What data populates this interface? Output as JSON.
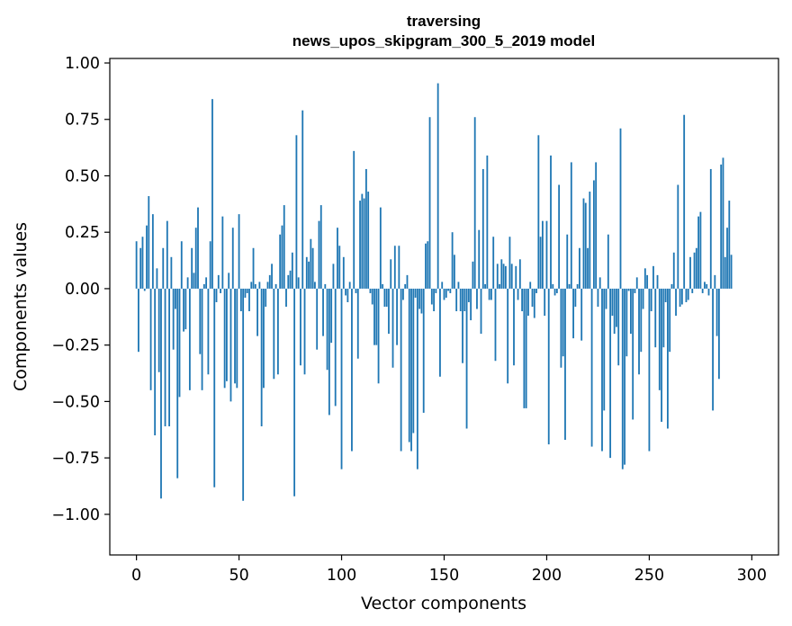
{
  "chart_data": {
    "type": "bar",
    "title": [
      "traversing",
      "news_upos_skipgram_300_5_2019 model"
    ],
    "xlabel": "Vector components",
    "ylabel": "Components values",
    "xlim": [
      -13,
      313
    ],
    "ylim": [
      -1.18,
      1.02
    ],
    "xticks": [
      0,
      50,
      100,
      150,
      200,
      250,
      300
    ],
    "xtick_labels": [
      "0",
      "50",
      "100",
      "150",
      "200",
      "250",
      "300"
    ],
    "yticks": [
      1.0,
      0.75,
      0.5,
      0.25,
      0.0,
      -0.25,
      -0.5,
      -0.75,
      -1.0
    ],
    "ytick_labels": [
      "1.00",
      "0.75",
      "0.50",
      "0.25",
      "0.00",
      "−0.25",
      "−0.50",
      "−0.75",
      "−1.00"
    ],
    "bar_color": "#1f77b4",
    "grid": false,
    "legend": "none",
    "x_start": 0,
    "values": [
      0.21,
      -0.28,
      0.18,
      0.23,
      -0.01,
      0.28,
      0.41,
      -0.45,
      0.33,
      -0.65,
      0.09,
      -0.37,
      -0.93,
      0.18,
      -0.61,
      0.3,
      -0.61,
      0.14,
      -0.27,
      -0.09,
      -0.84,
      -0.48,
      0.21,
      -0.19,
      -0.18,
      0.05,
      -0.45,
      0.18,
      0.07,
      0.27,
      0.36,
      -0.29,
      -0.45,
      0.02,
      0.05,
      -0.38,
      0.21,
      0.84,
      -0.88,
      -0.06,
      0.06,
      -0.02,
      0.32,
      -0.44,
      -0.41,
      0.07,
      -0.5,
      0.27,
      -0.42,
      -0.44,
      0.33,
      -0.1,
      -0.94,
      -0.04,
      -0.02,
      -0.1,
      0.03,
      0.18,
      0.02,
      -0.21,
      0.03,
      -0.61,
      -0.44,
      -0.08,
      0.03,
      0.06,
      0.11,
      -0.4,
      0.02,
      -0.38,
      0.24,
      0.28,
      0.37,
      -0.08,
      0.06,
      0.08,
      0.16,
      -0.92,
      0.68,
      0.05,
      -0.34,
      0.79,
      -0.38,
      0.14,
      0.12,
      0.22,
      0.18,
      0.03,
      -0.27,
      0.3,
      0.37,
      -0.21,
      0.02,
      -0.36,
      -0.56,
      -0.24,
      0.11,
      -0.52,
      0.27,
      0.19,
      -0.8,
      0.14,
      -0.03,
      -0.06,
      0.03,
      -0.72,
      0.61,
      -0.02,
      -0.31,
      0.39,
      0.42,
      0.4,
      0.53,
      0.43,
      -0.02,
      -0.07,
      -0.25,
      -0.25,
      -0.42,
      0.36,
      0.02,
      -0.08,
      -0.08,
      -0.2,
      0.13,
      -0.35,
      0.19,
      -0.25,
      0.19,
      -0.72,
      -0.05,
      0.02,
      0.06,
      -0.68,
      -0.72,
      -0.64,
      -0.04,
      -0.8,
      -0.09,
      -0.11,
      -0.55,
      0.2,
      0.21,
      0.76,
      -0.07,
      -0.1,
      -0.02,
      0.91,
      -0.39,
      0.03,
      -0.05,
      -0.04,
      -0.01,
      -0.02,
      0.25,
      0.15,
      -0.1,
      0.03,
      -0.1,
      -0.33,
      -0.1,
      -0.62,
      -0.06,
      -0.14,
      0.12,
      0.76,
      -0.09,
      0.26,
      -0.2,
      0.53,
      0.02,
      0.59,
      -0.05,
      -0.05,
      0.23,
      -0.32,
      0.11,
      0.02,
      0.13,
      0.11,
      0.1,
      -0.42,
      0.23,
      0.11,
      -0.34,
      0.1,
      -0.05,
      0.13,
      -0.1,
      -0.53,
      -0.53,
      -0.12,
      0.03,
      -0.08,
      -0.13,
      -0.02,
      0.68,
      0.23,
      0.3,
      -0.12,
      0.3,
      -0.69,
      0.59,
      0.02,
      -0.03,
      -0.02,
      0.46,
      -0.35,
      -0.3,
      -0.67,
      0.24,
      0.02,
      0.56,
      -0.22,
      -0.08,
      0.02,
      0.18,
      -0.23,
      0.4,
      0.38,
      0.18,
      0.43,
      -0.7,
      0.48,
      0.56,
      -0.08,
      0.05,
      -0.72,
      -0.54,
      -0.09,
      0.24,
      -0.75,
      -0.12,
      -0.2,
      -0.17,
      -0.34,
      0.71,
      -0.8,
      -0.78,
      -0.3,
      -0.01,
      -0.2,
      -0.58,
      -0.02,
      0.05,
      -0.38,
      -0.28,
      -0.09,
      0.09,
      0.06,
      -0.72,
      -0.1,
      0.1,
      -0.26,
      0.06,
      -0.45,
      -0.59,
      -0.26,
      -0.06,
      -0.62,
      -0.28,
      0.02,
      0.16,
      -0.12,
      0.46,
      -0.08,
      -0.07,
      0.77,
      -0.06,
      -0.05,
      0.14,
      -0.02,
      0.16,
      0.18,
      0.32,
      0.34,
      -0.02,
      0.03,
      0.02,
      -0.03,
      0.53,
      -0.54,
      0.06,
      -0.21,
      -0.4,
      0.55,
      0.58,
      0.14,
      0.27,
      0.39,
      0.15
    ]
  }
}
